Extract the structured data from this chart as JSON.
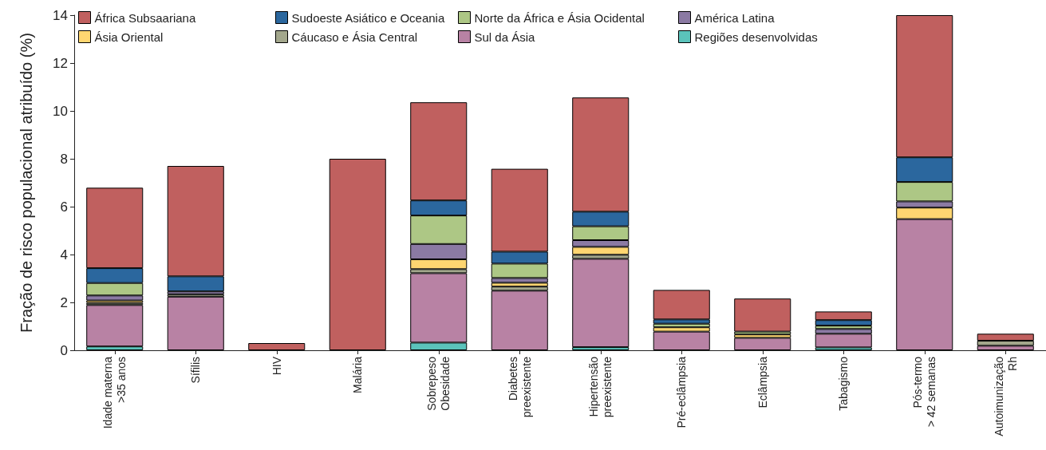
{
  "chart_data": {
    "type": "bar",
    "stacked": true,
    "ylabel": "Fração de risco populacional atribuído (%)",
    "categories": [
      "Idade materna\n>35 anos",
      "Sífilis",
      "HIV",
      "Malária",
      "Sobrepeso\nObesidade",
      "Diabetes\npreexistente",
      "Hipertensão\npreexistente",
      "Pré-eclâmpsia",
      "Eclâmpsia",
      "Tabagismo",
      "Pós-termo\n> 42 semanas",
      "Autoimunização\nRh"
    ],
    "series": [
      {
        "name": "Regiões desenvolvidas",
        "color": "#5bc3bb",
        "values": [
          0.16,
          null,
          null,
          null,
          0.32,
          null,
          0.13,
          null,
          null,
          0.12,
          null,
          null
        ]
      },
      {
        "name": "Sul da Ásia",
        "color": "#b882a4",
        "values": [
          1.73,
          2.24,
          null,
          null,
          2.9,
          2.49,
          3.69,
          0.78,
          0.52,
          0.57,
          5.48,
          0.19
        ]
      },
      {
        "name": "Cáucaso e Ásia Central",
        "color": "#a3a78c",
        "values": [
          0.09,
          0.1,
          null,
          null,
          0.17,
          0.17,
          0.17,
          null,
          null,
          null,
          null,
          0.21
        ]
      },
      {
        "name": "Ásia Oriental",
        "color": "#ffd671",
        "values": [
          0.1,
          null,
          null,
          null,
          0.41,
          0.16,
          0.33,
          0.18,
          0.14,
          null,
          0.48,
          null
        ]
      },
      {
        "name": "América Latina",
        "color": "#8b7aa3",
        "values": [
          0.21,
          0.12,
          null,
          null,
          0.64,
          0.2,
          0.28,
          null,
          null,
          0.2,
          0.26,
          null
        ]
      },
      {
        "name": "Norte da África e Ásia Ocidental",
        "color": "#adc785",
        "values": [
          0.52,
          null,
          null,
          null,
          1.19,
          0.6,
          0.58,
          0.15,
          0.12,
          0.14,
          0.81,
          null
        ]
      },
      {
        "name": "Sudoeste Asiático e Oceania",
        "color": "#2b679e",
        "values": [
          0.62,
          0.63,
          null,
          null,
          0.63,
          0.5,
          0.61,
          0.18,
          null,
          0.23,
          1.03,
          null
        ]
      },
      {
        "name": "África Subsaariana",
        "color": "#c0605f",
        "values": [
          3.36,
          4.61,
          0.3,
          8.0,
          4.1,
          3.46,
          4.77,
          1.23,
          1.38,
          0.36,
          5.94,
          0.29
        ]
      }
    ],
    "ylim": [
      0,
      14
    ],
    "yticks": [
      0,
      2,
      4,
      6,
      8,
      10,
      12,
      14
    ],
    "grid": false,
    "legend": "top left"
  }
}
